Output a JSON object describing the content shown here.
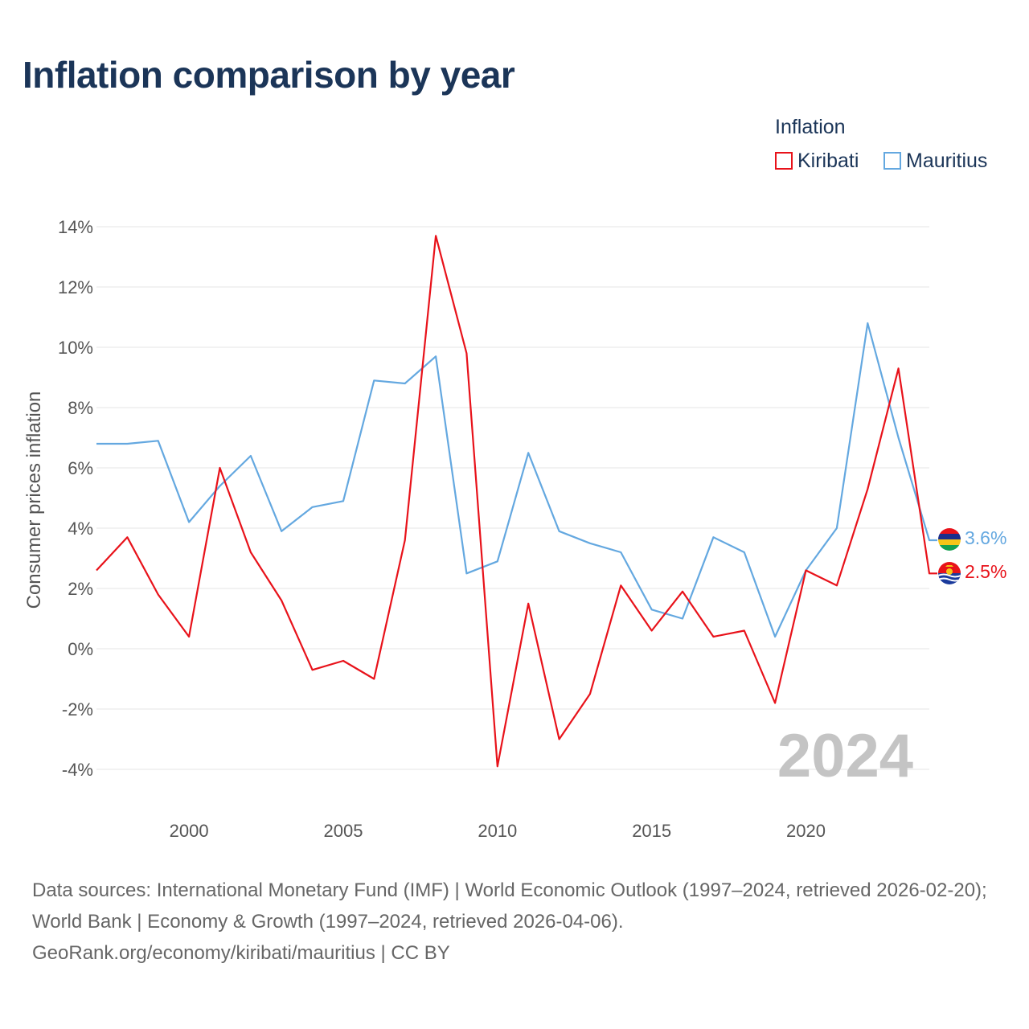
{
  "title": "Inflation comparison by year",
  "legend": {
    "title": "Inflation",
    "items": [
      {
        "label": "Kiribati",
        "color": "#e8121a"
      },
      {
        "label": "Mauritius",
        "color": "#64a8e0"
      }
    ]
  },
  "chart_data": {
    "type": "line",
    "ylabel": "Consumer prices inflation",
    "xlabel": "",
    "xlim": [
      1997,
      2024
    ],
    "ylim": [
      -5,
      14.5
    ],
    "x_ticks": [
      2000,
      2005,
      2010,
      2015,
      2020
    ],
    "y_ticks": [
      14,
      12,
      10,
      8,
      6,
      4,
      2,
      0,
      -2,
      -4
    ],
    "y_tick_labels": [
      "14%",
      "12%",
      "10%",
      "8%",
      "6%",
      "4%",
      "2%",
      "0%",
      "-2%",
      "-4%"
    ],
    "x": [
      1997,
      1998,
      1999,
      2000,
      2001,
      2002,
      2003,
      2004,
      2005,
      2006,
      2007,
      2008,
      2009,
      2010,
      2011,
      2012,
      2013,
      2014,
      2015,
      2016,
      2017,
      2018,
      2019,
      2020,
      2021,
      2022,
      2023,
      2024
    ],
    "series": [
      {
        "name": "Kiribati",
        "color": "#e8121a",
        "values": [
          2.6,
          3.7,
          1.8,
          0.4,
          6.0,
          3.2,
          1.6,
          -0.7,
          -0.4,
          -1.0,
          3.6,
          13.7,
          9.8,
          -3.9,
          1.5,
          -3.0,
          -1.5,
          2.1,
          0.6,
          1.9,
          0.4,
          0.6,
          -1.8,
          2.6,
          2.1,
          5.3,
          9.3,
          2.5
        ],
        "end_label": "2.5%"
      },
      {
        "name": "Mauritius",
        "color": "#64a8e0",
        "values": [
          6.8,
          6.8,
          6.9,
          4.2,
          5.4,
          6.4,
          3.9,
          4.7,
          4.9,
          8.9,
          8.8,
          9.7,
          2.5,
          2.9,
          6.5,
          3.9,
          3.5,
          3.2,
          1.3,
          1.0,
          3.7,
          3.2,
          0.4,
          2.6,
          4.0,
          10.8,
          7.0,
          3.6
        ],
        "end_label": "3.6%"
      }
    ],
    "year_label": "2024"
  },
  "source": {
    "line1": "Data sources: International Monetary Fund (IMF) | World Economic Outlook (1997–2024, retrieved 2026-02-20); World Bank | Economy & Growth (1997–2024, retrieved 2026-04-06).",
    "line2": "GeoRank.org/economy/kiribati/mauritius | CC BY"
  }
}
